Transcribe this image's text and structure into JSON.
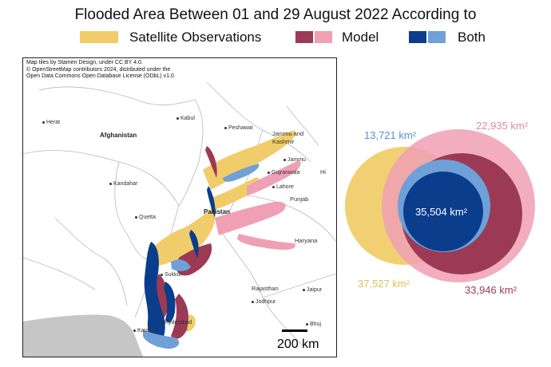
{
  "title": "Flooded Area Between 01 and 29 August 2022 According to",
  "legend": {
    "satellite_label": "Satellite Observations",
    "model_label": "Model",
    "both_label": "Both"
  },
  "colors": {
    "satellite": "#f0cd6a",
    "model_dark": "#9c3a55",
    "model_light": "#f0a0b4",
    "both_dark": "#0a3d8c",
    "both_light": "#6fa0d8",
    "sea": "#c6c6c6"
  },
  "map": {
    "attribution": "Map tiles by Stamen Design, under CC BY 4.0.\n© OpenStreetMap contributors 2024, distributed under the\nOpen Data Commons Open Database License (ODbL) v1.0.",
    "places": {
      "herat": "Herat",
      "kabul": "Kabul",
      "peshawar": "Peshawar",
      "kandahar": "Kandahar",
      "quetta": "Quetta",
      "jammu": "Jammu",
      "gujranwala": "Gujranwala",
      "lahore": "Lahore",
      "sukkur": "Sukkur",
      "karachi": "Karachi",
      "hyderabad": "Hyderabad",
      "jaipur": "Jaipur",
      "jodhpur": "Jodhpur",
      "bhuj": "Bhuj"
    },
    "regions": {
      "afghanistan": "Afghanistan",
      "pakistan": "Pakistan",
      "jammu_kashmir": "Jammu and\nKashmir",
      "punjab": "Punjab",
      "haryana": "Haryana",
      "rajasthan": "Rajasthan",
      "hi": "Hi"
    },
    "scale_label": "200 km"
  },
  "venn": {
    "satellite_only": "37,527 km²",
    "model_only": "33,946 km²",
    "both": "35,504 km²",
    "satellite_light": "13,721 km²",
    "model_light": "22,935 km²"
  }
}
